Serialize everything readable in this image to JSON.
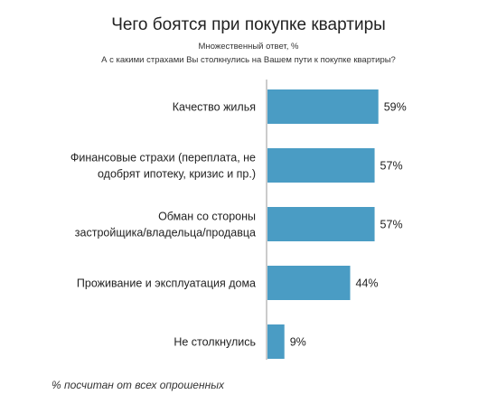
{
  "header": {
    "title": "Чего боятся при покупке квартиры",
    "subtitle_1": "Множественный ответ, %",
    "subtitle_2": "А с какими страхами Вы столкнулись на Вашем пути к покупке квартиры?"
  },
  "footnote": "% посчитан от всех опрошенных",
  "colors": {
    "bar": "#4a9cc4",
    "axis": "#9a9a9a",
    "text": "#222222"
  },
  "chart_data": {
    "type": "bar",
    "orientation": "horizontal",
    "categories": [
      [
        "Качество жилья"
      ],
      [
        "Финансовые страхи (переплата, не",
        "одобрят ипотеку, кризис и пр.)"
      ],
      [
        "Обман со стороны",
        "застройщика/владельца/продавца"
      ],
      [
        "Проживание и эксплуатация дома"
      ],
      [
        "Не столкнулись"
      ]
    ],
    "values": [
      59,
      57,
      57,
      44,
      9
    ],
    "value_labels": [
      "59%",
      "57%",
      "57%",
      "44%",
      "9%"
    ],
    "unit": "%",
    "xlim": [
      0,
      100
    ],
    "grid": false,
    "legend": "none"
  }
}
